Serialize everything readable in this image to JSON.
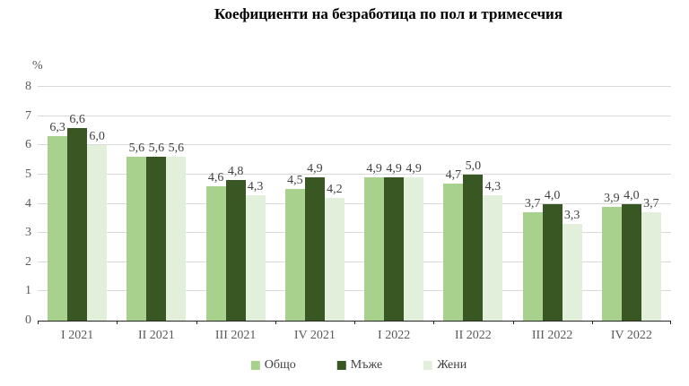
{
  "chart_data": {
    "type": "bar",
    "title": "Коефициенти на безработица по пол и тримесечия",
    "unit_label": "%",
    "categories": [
      "I 2021",
      "II 2021",
      "III 2021",
      "IV 2021",
      "I 2022",
      "II 2022",
      "III 2022",
      "IV 2022"
    ],
    "series": [
      {
        "name": "Общо",
        "color": "#A9D18E",
        "values": [
          6.3,
          5.6,
          4.6,
          4.5,
          4.9,
          4.7,
          3.7,
          3.9
        ]
      },
      {
        "name": "Мъже",
        "color": "#385723",
        "values": [
          6.6,
          5.6,
          4.8,
          4.9,
          4.9,
          5.0,
          4.0,
          4.0
        ]
      },
      {
        "name": "Жени",
        "color": "#E2EFDA",
        "values": [
          6.0,
          5.6,
          4.3,
          4.2,
          4.9,
          4.3,
          3.3,
          3.7
        ]
      }
    ],
    "ylim": [
      0,
      8
    ],
    "ytick_step": 1,
    "grid": true,
    "legend_position": "bottom",
    "decimal_separator": ",",
    "data_labels": true
  },
  "colors": {
    "background": "#FFFFFF",
    "gridline": "#D9D9D9",
    "axis_line": "#262626",
    "axis_text": "#595959",
    "data_label_text": "#404040",
    "title_text": "#000000"
  }
}
